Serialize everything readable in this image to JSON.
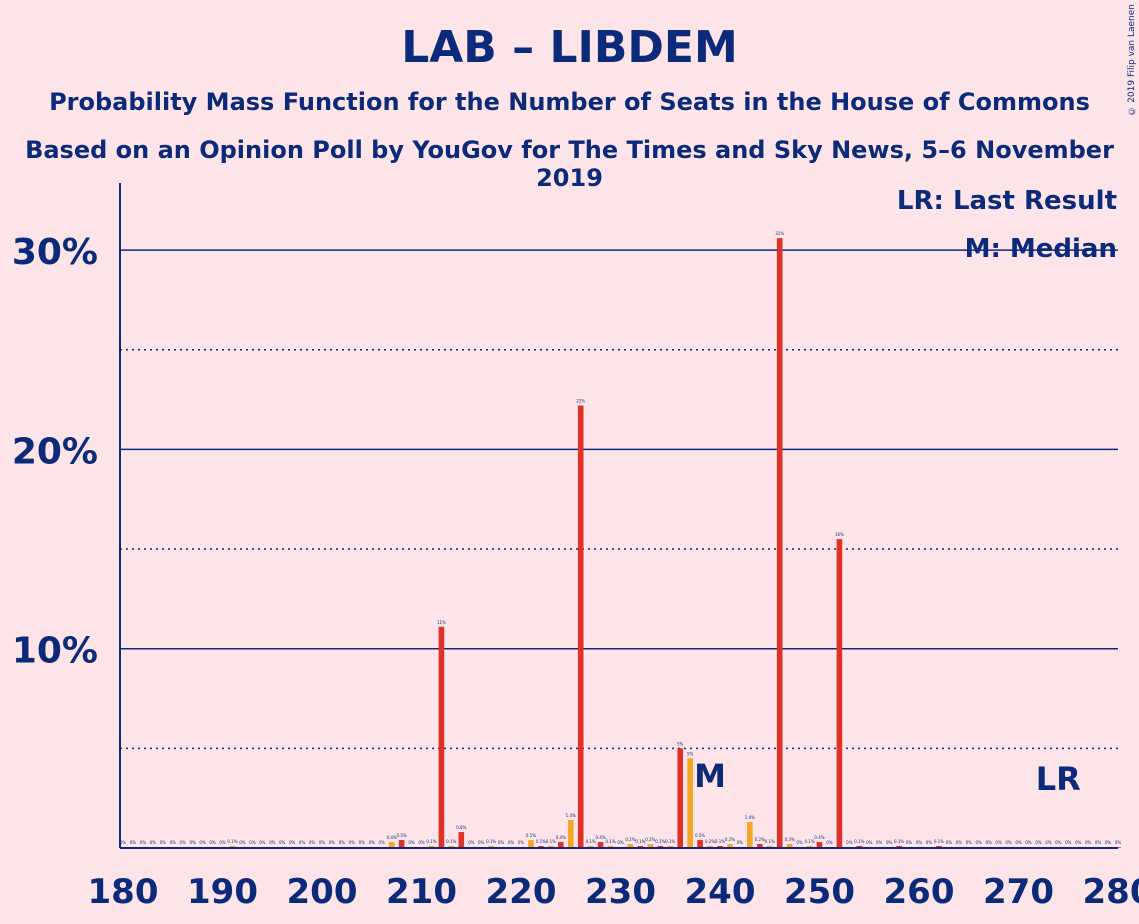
{
  "chart_data": {
    "type": "bar",
    "title": "LAB – LIBDEM",
    "subtitle1": "Probability Mass Function for the Number of Seats in the House of Commons",
    "subtitle2": "Based on an Opinion Poll by YouGov for The Times and Sky News, 5–6 November 2019",
    "copyright": "© 2019 Filip van Laenen",
    "legend": {
      "lr": "LR: Last Result",
      "m": "M: Median",
      "placement": "top-right"
    },
    "markers": {
      "median": {
        "x": 239,
        "label": "M"
      },
      "last_result": {
        "x": 274,
        "label": "LR"
      }
    },
    "ylim": [
      0,
      32
    ],
    "xlim": [
      180,
      280
    ],
    "y_ticks": [
      {
        "v": 10,
        "label": "10%"
      },
      {
        "v": 20,
        "label": "20%"
      },
      {
        "v": 30,
        "label": "30%"
      }
    ],
    "y_dotted": [
      5,
      15,
      25
    ],
    "x_ticks": [
      180,
      190,
      200,
      210,
      220,
      230,
      240,
      250,
      260,
      270,
      280
    ],
    "colors": {
      "even": "#e03127",
      "odd": "#f5a623",
      "axis": "#0c2a7a",
      "background": "#fde4e8"
    },
    "values": [
      {
        "x": 180,
        "v": 0,
        "l": "0%"
      },
      {
        "x": 181,
        "v": 0,
        "l": "0%"
      },
      {
        "x": 182,
        "v": 0,
        "l": "0%"
      },
      {
        "x": 183,
        "v": 0,
        "l": "0%"
      },
      {
        "x": 184,
        "v": 0,
        "l": "0%"
      },
      {
        "x": 185,
        "v": 0,
        "l": "0%"
      },
      {
        "x": 186,
        "v": 0,
        "l": "0%"
      },
      {
        "x": 187,
        "v": 0,
        "l": "0%"
      },
      {
        "x": 188,
        "v": 0,
        "l": "0%"
      },
      {
        "x": 189,
        "v": 0,
        "l": "0%"
      },
      {
        "x": 190,
        "v": 0,
        "l": "0%"
      },
      {
        "x": 191,
        "v": 0.1,
        "l": "0.1%"
      },
      {
        "x": 192,
        "v": 0,
        "l": "0%"
      },
      {
        "x": 193,
        "v": 0,
        "l": "0%"
      },
      {
        "x": 194,
        "v": 0,
        "l": "0%"
      },
      {
        "x": 195,
        "v": 0,
        "l": "0%"
      },
      {
        "x": 196,
        "v": 0,
        "l": "0%"
      },
      {
        "x": 197,
        "v": 0,
        "l": "0%"
      },
      {
        "x": 198,
        "v": 0,
        "l": "0%"
      },
      {
        "x": 199,
        "v": 0,
        "l": "0%"
      },
      {
        "x": 200,
        "v": 0,
        "l": "0%"
      },
      {
        "x": 201,
        "v": 0,
        "l": "0%"
      },
      {
        "x": 202,
        "v": 0,
        "l": "0%"
      },
      {
        "x": 203,
        "v": 0,
        "l": "0%"
      },
      {
        "x": 204,
        "v": 0,
        "l": "0%"
      },
      {
        "x": 205,
        "v": 0,
        "l": "0%"
      },
      {
        "x": 206,
        "v": 0,
        "l": "0%"
      },
      {
        "x": 207,
        "v": 0.3,
        "l": "0.4%"
      },
      {
        "x": 208,
        "v": 0.4,
        "l": "0.5%"
      },
      {
        "x": 209,
        "v": 0,
        "l": "0%"
      },
      {
        "x": 210,
        "v": 0,
        "l": "0%"
      },
      {
        "x": 211,
        "v": 0.1,
        "l": "0.1%"
      },
      {
        "x": 212,
        "v": 11.1,
        "l": "11%"
      },
      {
        "x": 213,
        "v": 0.1,
        "l": "0.1%"
      },
      {
        "x": 214,
        "v": 0.8,
        "l": "0.8%"
      },
      {
        "x": 215,
        "v": 0,
        "l": "0%"
      },
      {
        "x": 216,
        "v": 0,
        "l": "0%"
      },
      {
        "x": 217,
        "v": 0.1,
        "l": "0.1%"
      },
      {
        "x": 218,
        "v": 0,
        "l": "0%"
      },
      {
        "x": 219,
        "v": 0,
        "l": "0%"
      },
      {
        "x": 220,
        "v": 0,
        "l": "0%"
      },
      {
        "x": 221,
        "v": 0.4,
        "l": "0.5%"
      },
      {
        "x": 222,
        "v": 0.1,
        "l": "0.1%"
      },
      {
        "x": 223,
        "v": 0.1,
        "l": "0.1%"
      },
      {
        "x": 224,
        "v": 0.3,
        "l": "0.4%"
      },
      {
        "x": 225,
        "v": 1.4,
        "l": "1.4%"
      },
      {
        "x": 226,
        "v": 22.2,
        "l": "22%"
      },
      {
        "x": 227,
        "v": 0.1,
        "l": "0.1%"
      },
      {
        "x": 228,
        "v": 0.3,
        "l": "0.4%"
      },
      {
        "x": 229,
        "v": 0.1,
        "l": "0.1%"
      },
      {
        "x": 230,
        "v": 0,
        "l": "0%"
      },
      {
        "x": 231,
        "v": 0.2,
        "l": "0.2%"
      },
      {
        "x": 232,
        "v": 0.1,
        "l": "0.1%"
      },
      {
        "x": 233,
        "v": 0.2,
        "l": "0.2%"
      },
      {
        "x": 234,
        "v": 0.1,
        "l": "0.1%"
      },
      {
        "x": 235,
        "v": 0.1,
        "l": "0.1%"
      },
      {
        "x": 236,
        "v": 5.0,
        "l": "5%"
      },
      {
        "x": 237,
        "v": 4.5,
        "l": "5%"
      },
      {
        "x": 238,
        "v": 0.4,
        "l": "0.5%"
      },
      {
        "x": 239,
        "v": 0.1,
        "l": "0.2%"
      },
      {
        "x": 240,
        "v": 0.1,
        "l": "0.1%"
      },
      {
        "x": 241,
        "v": 0.2,
        "l": "0.2%"
      },
      {
        "x": 242,
        "v": 0,
        "l": "0%"
      },
      {
        "x": 243,
        "v": 1.3,
        "l": "1.4%"
      },
      {
        "x": 244,
        "v": 0.2,
        "l": "0.2%"
      },
      {
        "x": 245,
        "v": 0.1,
        "l": "0.1%"
      },
      {
        "x": 246,
        "v": 30.6,
        "l": "31%"
      },
      {
        "x": 247,
        "v": 0.2,
        "l": "0.3%"
      },
      {
        "x": 248,
        "v": 0,
        "l": "0%"
      },
      {
        "x": 249,
        "v": 0.1,
        "l": "0.1%"
      },
      {
        "x": 250,
        "v": 0.3,
        "l": "0.4%"
      },
      {
        "x": 251,
        "v": 0,
        "l": "0%"
      },
      {
        "x": 252,
        "v": 15.5,
        "l": "16%"
      },
      {
        "x": 253,
        "v": 0,
        "l": "0%"
      },
      {
        "x": 254,
        "v": 0.1,
        "l": "0.1%"
      },
      {
        "x": 255,
        "v": 0,
        "l": "0%"
      },
      {
        "x": 256,
        "v": 0,
        "l": "0%"
      },
      {
        "x": 257,
        "v": 0,
        "l": "0%"
      },
      {
        "x": 258,
        "v": 0.1,
        "l": "0.1%"
      },
      {
        "x": 259,
        "v": 0,
        "l": "0%"
      },
      {
        "x": 260,
        "v": 0,
        "l": "0%"
      },
      {
        "x": 261,
        "v": 0,
        "l": "0%"
      },
      {
        "x": 262,
        "v": 0.1,
        "l": "0.1%"
      },
      {
        "x": 263,
        "v": 0,
        "l": "0%"
      },
      {
        "x": 264,
        "v": 0,
        "l": "0%"
      },
      {
        "x": 265,
        "v": 0,
        "l": "0%"
      },
      {
        "x": 266,
        "v": 0,
        "l": "0%"
      },
      {
        "x": 267,
        "v": 0,
        "l": "0%"
      },
      {
        "x": 268,
        "v": 0,
        "l": "0%"
      },
      {
        "x": 269,
        "v": 0,
        "l": "0%"
      },
      {
        "x": 270,
        "v": 0,
        "l": "0%"
      },
      {
        "x": 271,
        "v": 0,
        "l": "0%"
      },
      {
        "x": 272,
        "v": 0,
        "l": "0%"
      },
      {
        "x": 273,
        "v": 0,
        "l": "0%"
      },
      {
        "x": 274,
        "v": 0,
        "l": "0%"
      },
      {
        "x": 275,
        "v": 0,
        "l": "0%"
      },
      {
        "x": 276,
        "v": 0,
        "l": "0%"
      },
      {
        "x": 277,
        "v": 0,
        "l": "0%"
      },
      {
        "x": 278,
        "v": 0,
        "l": "0%"
      },
      {
        "x": 279,
        "v": 0,
        "l": "0%"
      },
      {
        "x": 280,
        "v": 0,
        "l": "0%"
      }
    ]
  }
}
